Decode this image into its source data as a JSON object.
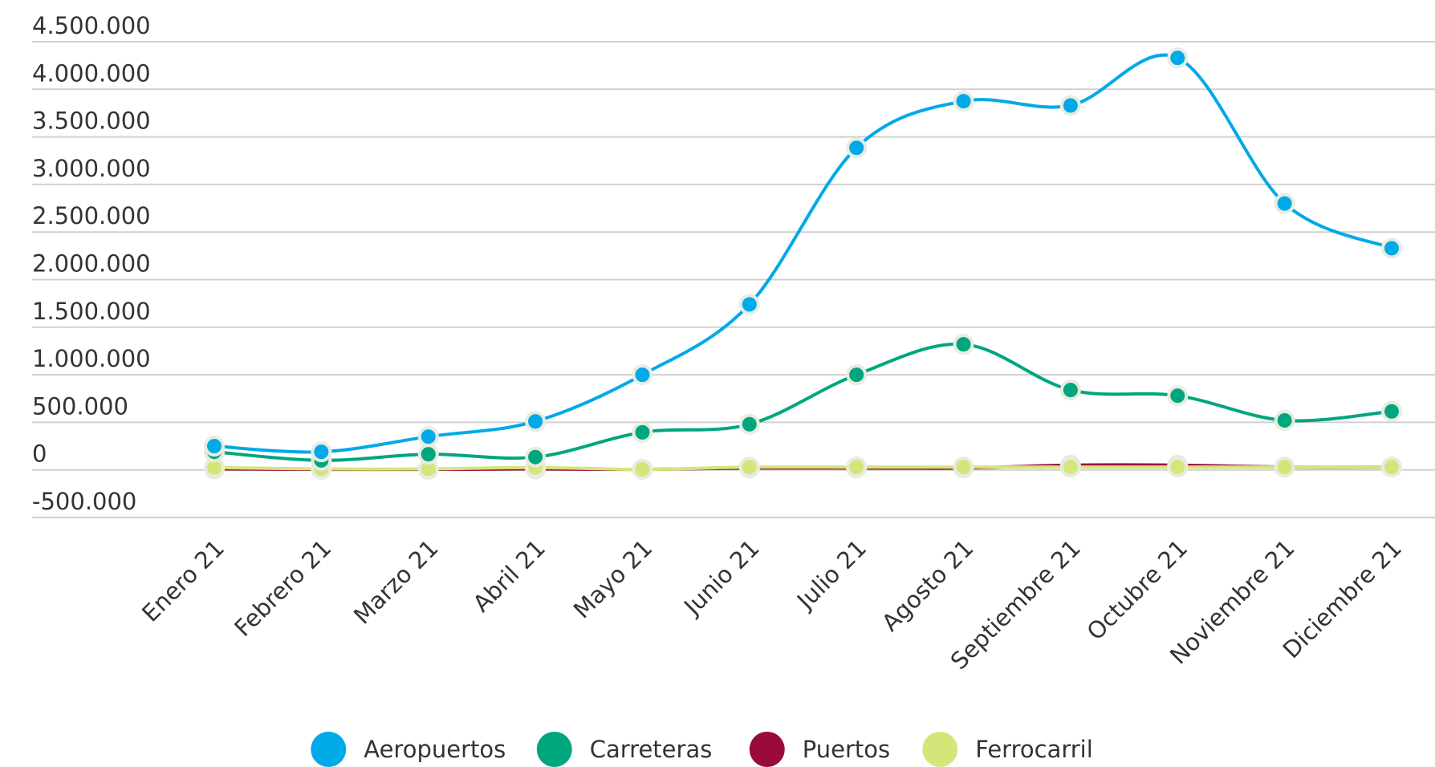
{
  "chart_data": {
    "type": "line",
    "categories": [
      "Enero 21",
      "Febrero 21",
      "Marzo 21",
      "Abril 21",
      "Mayo 21",
      "Junio 21",
      "Julio 21",
      "Agosto 21",
      "Septiembre 21",
      "Octubre 21",
      "Noviembre 21",
      "Diciembre 21"
    ],
    "series": [
      {
        "name": "Aeropuertos",
        "color": "#00a9e8",
        "values": [
          250000,
          190000,
          350000,
          510000,
          1000000,
          1740000,
          3385000,
          3875000,
          3830000,
          4330000,
          2800000,
          2330000
        ]
      },
      {
        "name": "Carreteras",
        "color": "#00a67e",
        "values": [
          190000,
          100000,
          165000,
          135000,
          395000,
          480000,
          1000000,
          1320000,
          840000,
          780000,
          520000,
          615000
        ]
      },
      {
        "name": "Puertos",
        "color": "#9b0a3c",
        "values": [
          10000,
          5000,
          5000,
          10000,
          5000,
          20000,
          20000,
          20000,
          50000,
          50000,
          30000,
          30000
        ]
      },
      {
        "name": "Ferrocarril",
        "color": "#d4e57a",
        "values": [
          25000,
          10000,
          10000,
          25000,
          5000,
          30000,
          30000,
          30000,
          30000,
          30000,
          30000,
          30000
        ]
      }
    ],
    "ylim": [
      -500000,
      4500000
    ],
    "yticks": [
      {
        "value": -500000,
        "label": "-500.000"
      },
      0,
      {
        "value": 500000,
        "label": "500.000"
      },
      {
        "value": 1000000,
        "label": "1.000.000"
      },
      {
        "value": 1500000,
        "label": "1.500.000"
      },
      {
        "value": 2000000,
        "label": "2.000.000"
      },
      {
        "value": 2500000,
        "label": "2.500.000"
      },
      {
        "value": 3000000,
        "label": "3.000.000"
      },
      {
        "value": 3500000,
        "label": "3.500.000"
      },
      {
        "value": 4000000,
        "label": "4.000.000"
      },
      {
        "value": 4500000,
        "label": "4.500.000"
      }
    ],
    "grid": true,
    "legend": "bottom"
  }
}
